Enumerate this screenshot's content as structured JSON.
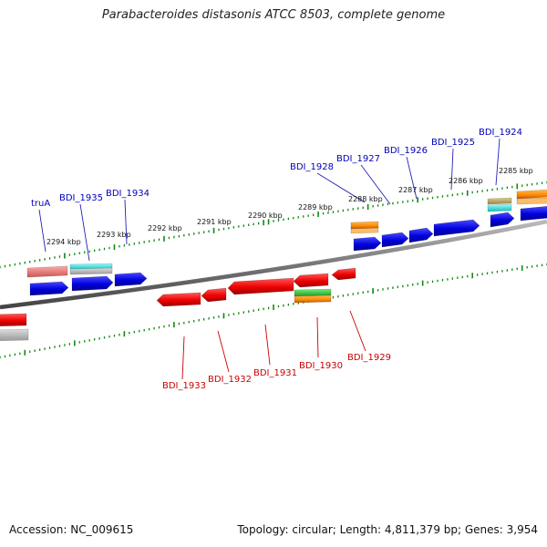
{
  "title": "Parabacteroides distasonis ATCC 8503, complete genome",
  "accession": "Accession: NC_009615",
  "summary": "Topology: circular; Length: 4,811,379 bp; Genes: 3,954",
  "colors": {
    "forward_cds": "#0000dd",
    "reverse_cds": "#ee0000",
    "forward_label": "#0000bb",
    "reverse_label": "#cc0000",
    "backbone": "#777777",
    "ticks": "#118811",
    "orange_feature": "#ff8800",
    "cyan_feature": "#22dddd",
    "pink_feature": "#ee7777",
    "green_feature": "#33bb33",
    "olive_feature": "#bbaa66"
  },
  "kbp_labels": [
    "2294 kbp",
    "2293 kbp",
    "2292 kbp",
    "2291 kbp",
    "2290 kbp",
    "2289 kbp",
    "2288 kbp",
    "2287 kbp",
    "2286 kbp",
    "2285 kbp"
  ],
  "forward_genes": [
    "truA",
    "BDI_1935",
    "BDI_1934",
    "BDI_1928",
    "BDI_1927",
    "BDI_1926",
    "BDI_1925",
    "BDI_1924"
  ],
  "reverse_genes": [
    "BDI_1933",
    "BDI_1932",
    "BDI_1931",
    "BDI_1930",
    "BDI_1929"
  ]
}
